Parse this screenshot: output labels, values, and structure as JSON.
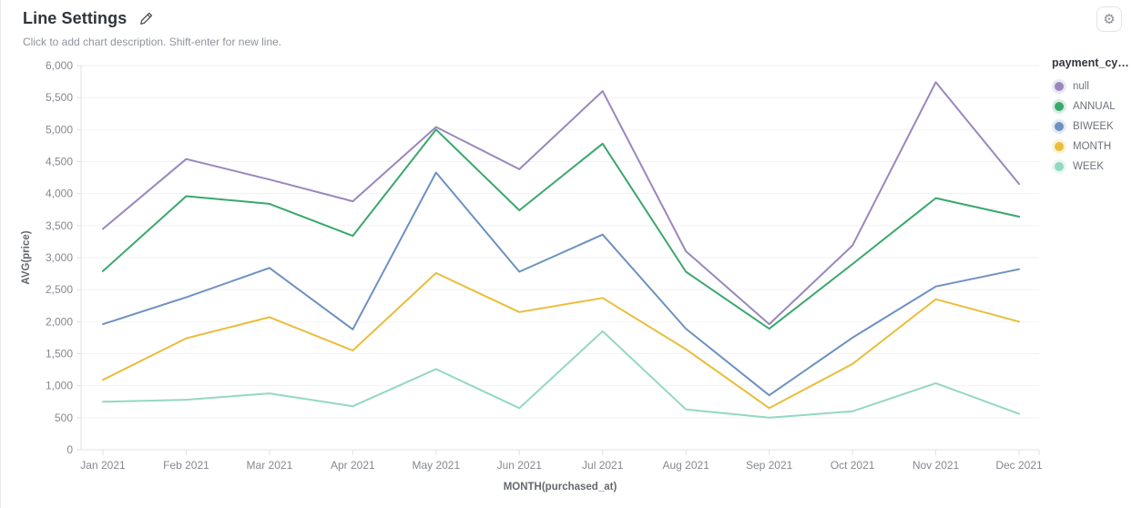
{
  "header": {
    "title": "Line Settings",
    "subtitle": "Click to add chart description. Shift-enter for new line."
  },
  "chart_data": {
    "type": "line",
    "x": [
      "Jan 2021",
      "Feb 2021",
      "Mar 2021",
      "Apr 2021",
      "May 2021",
      "Jun 2021",
      "Jul 2021",
      "Aug 2021",
      "Sep 2021",
      "Oct 2021",
      "Nov 2021",
      "Dec 2021"
    ],
    "series": [
      {
        "name": "null",
        "color": "#9a87bd",
        "values": [
          3450,
          4540,
          4220,
          3880,
          5040,
          4380,
          5600,
          3100,
          1960,
          3190,
          5740,
          4150
        ]
      },
      {
        "name": "ANNUAL",
        "color": "#3aa76d",
        "values": [
          2790,
          3960,
          3840,
          3340,
          5000,
          3740,
          4780,
          2780,
          1890,
          2900,
          3930,
          3640
        ]
      },
      {
        "name": "BIWEEK",
        "color": "#6d91c1",
        "values": [
          1960,
          2380,
          2840,
          1880,
          4330,
          2780,
          3360,
          1890,
          850,
          1750,
          2550,
          2820
        ]
      },
      {
        "name": "MONTH",
        "color": "#eabd3b",
        "values": [
          1090,
          1740,
          2070,
          1550,
          2760,
          2150,
          2370,
          1570,
          650,
          1340,
          2350,
          2000
        ]
      },
      {
        "name": "WEEK",
        "color": "#93d8c2",
        "values": [
          750,
          780,
          880,
          680,
          1260,
          650,
          1850,
          630,
          500,
          600,
          1040,
          560
        ]
      }
    ],
    "xlabel": "MONTH(purchased_at)",
    "ylabel": "AVG(price)",
    "ylim": [
      0,
      6000
    ],
    "ytick_step": 500,
    "grid": true,
    "legend_title": "payment_cy…",
    "legend_position": "right"
  },
  "colors": {
    "grid_line": "#f2f2f2",
    "axis_line": "#e2e2e2",
    "tick_label": "#84888f",
    "axis_title": "#65696f"
  }
}
